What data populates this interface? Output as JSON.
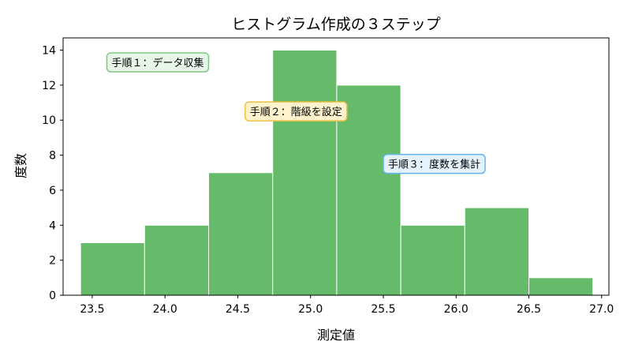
{
  "chart_data": {
    "type": "bar",
    "title": "ヒストグラム作成の３ステップ",
    "xlabel": "測定値",
    "ylabel": "度数",
    "xlim": [
      23.3,
      27.05
    ],
    "ylim": [
      0,
      14.7
    ],
    "xticks": [
      "23.5",
      "24.0",
      "24.5",
      "25.0",
      "25.5",
      "26.0",
      "26.5",
      "27.0"
    ],
    "yticks": [
      "0",
      "2",
      "4",
      "6",
      "8",
      "10",
      "12",
      "14"
    ],
    "bin_edges": [
      23.42,
      23.86,
      24.3,
      24.74,
      25.18,
      25.62,
      26.06,
      26.5,
      26.94
    ],
    "values": [
      3,
      4,
      7,
      14,
      12,
      4,
      5,
      1
    ],
    "bar_color": "#66bb6a",
    "grid": false,
    "annotations": [
      {
        "text": "手順１：データ収集",
        "x": 23.95,
        "y": 13.3,
        "fill": "#e8f5e9",
        "border": "#81c784"
      },
      {
        "text": "手順２：階級を設定",
        "x": 24.9,
        "y": 10.5,
        "fill": "#fff3cd",
        "border": "#f0c040"
      },
      {
        "text": "手順３：度数を集計",
        "x": 25.85,
        "y": 7.5,
        "fill": "#e3f2fd",
        "border": "#64b5f6"
      }
    ]
  }
}
